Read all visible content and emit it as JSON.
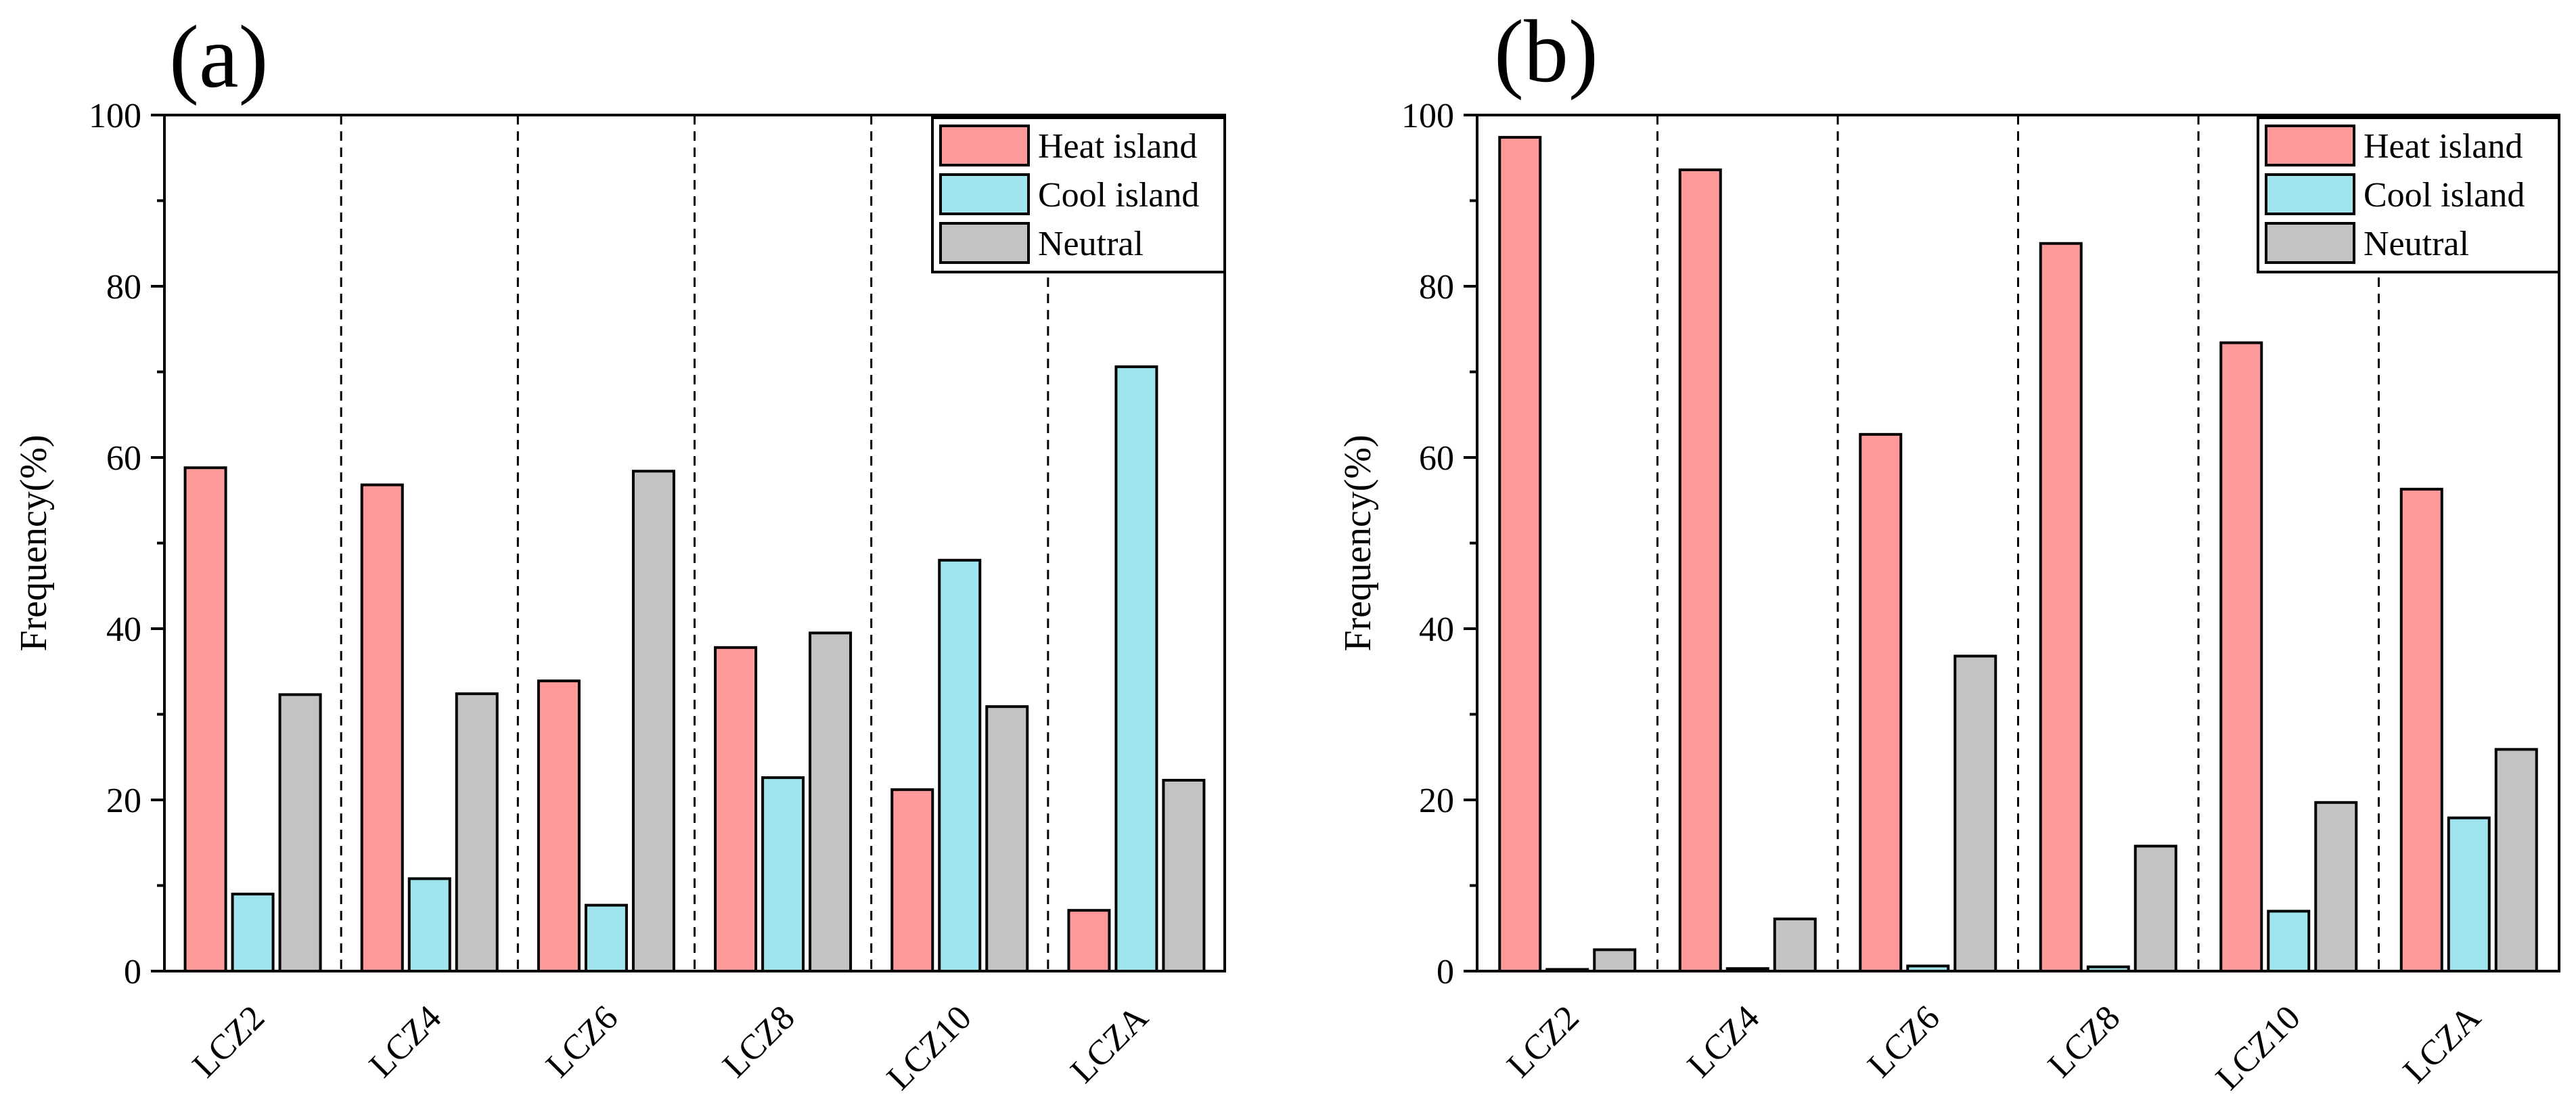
{
  "chart_data": [
    {
      "type": "bar",
      "panel_label": "(a)",
      "ylabel": "Frequency(%)",
      "xlabel": "",
      "ylim": [
        0,
        100
      ],
      "yticks": [
        "0",
        "20",
        "40",
        "60",
        "80",
        "100"
      ],
      "categories": [
        "LCZ2",
        "LCZ4",
        "LCZ6",
        "LCZ8",
        "LCZ10",
        "LCZA"
      ],
      "legend_position": "top-right",
      "series": [
        {
          "name": "Heat island",
          "color": "#FF9A9A",
          "values": [
            58.8,
            56.8,
            33.9,
            37.8,
            21.2,
            7.1
          ]
        },
        {
          "name": "Cool island",
          "color": "#A0E4EE",
          "values": [
            9.0,
            10.8,
            7.7,
            22.6,
            48.0,
            70.6
          ]
        },
        {
          "name": "Neutral",
          "color": "#C3C3C3",
          "values": [
            32.3,
            32.4,
            58.4,
            39.5,
            30.9,
            22.3
          ]
        }
      ]
    },
    {
      "type": "bar",
      "panel_label": "(b)",
      "ylabel": "Frequency(%)",
      "xlabel": "",
      "ylim": [
        0,
        100
      ],
      "yticks": [
        "0",
        "20",
        "40",
        "60",
        "80",
        "100"
      ],
      "categories": [
        "LCZ2",
        "LCZ4",
        "LCZ6",
        "LCZ8",
        "LCZ10",
        "LCZA"
      ],
      "legend_position": "top-right",
      "series": [
        {
          "name": "Heat island",
          "color": "#FF9A9A",
          "values": [
            97.4,
            93.6,
            62.7,
            85.0,
            73.4,
            56.3
          ]
        },
        {
          "name": "Cool island",
          "color": "#A0E4EE",
          "values": [
            0.2,
            0.3,
            0.6,
            0.5,
            7.0,
            17.9
          ]
        },
        {
          "name": "Neutral",
          "color": "#C3C3C3",
          "values": [
            2.5,
            6.1,
            36.8,
            14.6,
            19.7,
            25.9
          ]
        }
      ]
    }
  ]
}
